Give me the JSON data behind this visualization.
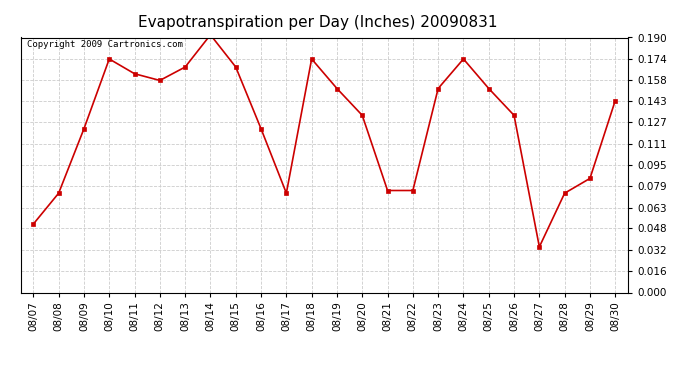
{
  "title": "Evapotranspiration per Day (Inches) 20090831",
  "copyright_text": "Copyright 2009 Cartronics.com",
  "dates": [
    "08/07",
    "08/08",
    "08/09",
    "08/10",
    "08/11",
    "08/12",
    "08/13",
    "08/14",
    "08/15",
    "08/16",
    "08/17",
    "08/18",
    "08/19",
    "08/20",
    "08/21",
    "08/22",
    "08/23",
    "08/24",
    "08/25",
    "08/26",
    "08/27",
    "08/28",
    "08/29",
    "08/30"
  ],
  "values": [
    0.051,
    0.074,
    0.122,
    0.174,
    0.163,
    0.158,
    0.168,
    0.192,
    0.168,
    0.122,
    0.074,
    0.174,
    0.152,
    0.132,
    0.076,
    0.076,
    0.152,
    0.174,
    0.152,
    0.132,
    0.034,
    0.074,
    0.085,
    0.143
  ],
  "line_color": "#cc0000",
  "marker": "s",
  "marker_size": 2.5,
  "bg_color": "#ffffff",
  "grid_color": "#cccccc",
  "ylim": [
    0.0,
    0.19
  ],
  "yticks": [
    0.0,
    0.016,
    0.032,
    0.048,
    0.063,
    0.079,
    0.095,
    0.111,
    0.127,
    0.143,
    0.158,
    0.174,
    0.19
  ],
  "title_fontsize": 11,
  "tick_fontsize": 7.5,
  "copyright_fontsize": 6.5,
  "fig_width": 6.9,
  "fig_height": 3.75,
  "dpi": 100
}
